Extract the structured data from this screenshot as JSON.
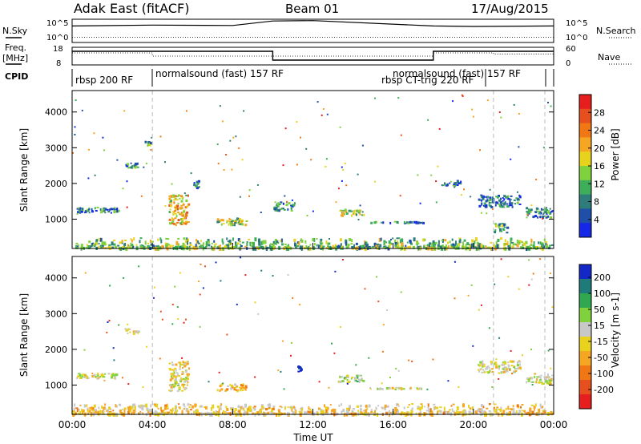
{
  "header": {
    "title": "Adak East (fitACF)",
    "beam": "Beam 01",
    "date": "17/Aug/2015"
  },
  "panels": {
    "nsky_label": "N.Sky",
    "nsky_top": "10^5",
    "nsky_bottom": "10^0",
    "nsearch_label": "N.Search",
    "nsearch_top": "10^5",
    "nsearch_bottom": "10^0",
    "freq_label_1": "Freq.",
    "freq_label_2": "[MHz]",
    "freq_top": "18",
    "freq_bottom": "8",
    "nave_label": "Nave",
    "nave_top": "60",
    "nave_bottom": "0",
    "cpid_label": "CPID"
  },
  "cpid_segments": [
    {
      "label": "rbsp 200 RF"
    },
    {
      "label": "normalsound (fast) 157 RF"
    },
    {
      "label": "rbsp CT-trig 220 RF"
    },
    {
      "label": "normalsound (fast) 157 RF"
    }
  ],
  "axes": {
    "ylabel": "Slant Range [km]",
    "xlabel": "Time UT",
    "yticks": [
      "1000",
      "2000",
      "3000",
      "4000"
    ],
    "xticks": [
      "00:00",
      "04:00",
      "08:00",
      "12:00",
      "16:00",
      "20:00",
      "00:00"
    ]
  },
  "colorbars": {
    "power": {
      "label": "Power [dB]",
      "ticks": [
        "4",
        "8",
        "12",
        "16",
        "20",
        "24",
        "28"
      ],
      "colors": [
        "#1428e6",
        "#1f4fa8",
        "#2f7d7a",
        "#3fae5a",
        "#7fd23c",
        "#e8d21e",
        "#f5a623",
        "#f07814",
        "#e6501e",
        "#e61e1e"
      ]
    },
    "velocity": {
      "label": "Velocity [m s-1]",
      "ticks": [
        "200",
        "100",
        "50",
        "15",
        "-15",
        "-50",
        "-100",
        "-200"
      ],
      "colors": [
        "#1428c8",
        "#1f7a7a",
        "#2fa84f",
        "#7fd23c",
        "#c8c8c8",
        "#e8d21e",
        "#f5a623",
        "#f07814",
        "#e6501e",
        "#e61e1e"
      ]
    }
  },
  "chart_data": [
    {
      "type": "line",
      "title": "",
      "series": [
        {
          "name": "N.Sky",
          "x": [
            0,
            4,
            8,
            10,
            12,
            18,
            20,
            24
          ],
          "y_log10": [
            3.5,
            3.7,
            3.6,
            4.6,
            4.7,
            3.5,
            3.4,
            3.5
          ]
        },
        {
          "name": "N.Search",
          "x": [
            0,
            4,
            8,
            10,
            12,
            18,
            20,
            24
          ],
          "y_log10": [
            1.0,
            1.0,
            1.0,
            1.0,
            1.0,
            1.0,
            1.0,
            1.0
          ]
        }
      ],
      "x_range_hours": [
        0,
        24
      ],
      "ylim_log10": [
        0,
        5
      ]
    },
    {
      "type": "line",
      "title": "",
      "series": [
        {
          "name": "Freq. [MHz]",
          "x": [
            0,
            10,
            10,
            18,
            18,
            24
          ],
          "y": [
            16.0,
            16.0,
            10.5,
            10.5,
            16.0,
            16.0
          ]
        },
        {
          "name": "Nave",
          "x": [
            0,
            4,
            4,
            18,
            18,
            21,
            21,
            24
          ],
          "y": [
            42,
            42,
            30,
            30,
            42,
            42,
            38,
            38
          ]
        }
      ],
      "freq_ylim": [
        8,
        18
      ],
      "nave_ylim": [
        0,
        60
      ]
    },
    {
      "type": "heatmap",
      "title": "",
      "xlabel": "Time UT",
      "ylabel": "Slant Range [km]",
      "colorbar_label": "Power [dB]",
      "x_range_hours": [
        0,
        24
      ],
      "ylim_km": [
        180,
        4600
      ],
      "clim_db": [
        0,
        30
      ],
      "regions": [
        {
          "t": [
            0.2,
            2.4
          ],
          "r": [
            1150,
            1350
          ],
          "value": 7
        },
        {
          "t": [
            2.6,
            3.4
          ],
          "r": [
            2400,
            2600
          ],
          "value": 8
        },
        {
          "t": [
            3.6,
            4.0
          ],
          "r": [
            3000,
            3200
          ],
          "value": 10
        },
        {
          "t": [
            4.8,
            5.9
          ],
          "r": [
            800,
            1700
          ],
          "value": 18
        },
        {
          "t": [
            6.0,
            6.4
          ],
          "r": [
            1800,
            2100
          ],
          "value": 8
        },
        {
          "t": [
            7.2,
            8.8
          ],
          "r": [
            800,
            1050
          ],
          "value": 14
        },
        {
          "t": [
            10.0,
            11.2
          ],
          "r": [
            1200,
            1500
          ],
          "value": 8
        },
        {
          "t": [
            13.2,
            14.6
          ],
          "r": [
            1050,
            1300
          ],
          "value": 14
        },
        {
          "t": [
            14.8,
            17.6
          ],
          "r": [
            850,
            950
          ],
          "value": 7
        },
        {
          "t": [
            18.4,
            19.5
          ],
          "r": [
            1900,
            2100
          ],
          "value": 6
        },
        {
          "t": [
            20.2,
            22.4
          ],
          "r": [
            1300,
            1700
          ],
          "value": 6
        },
        {
          "t": [
            22.6,
            24.0
          ],
          "r": [
            1000,
            1350
          ],
          "value": 7
        },
        {
          "t": [
            21.0,
            21.8
          ],
          "r": [
            600,
            900
          ],
          "value": 10
        },
        {
          "t": [
            0.0,
            24.0
          ],
          "r": [
            180,
            450
          ],
          "value": 12
        }
      ]
    },
    {
      "type": "heatmap",
      "title": "",
      "xlabel": "Time UT",
      "ylabel": "Slant Range [km]",
      "colorbar_label": "Velocity [m s-1]",
      "x_range_hours": [
        0,
        24
      ],
      "ylim_km": [
        180,
        4600
      ],
      "clim_ms": [
        -250,
        250
      ],
      "regions": [
        {
          "t": [
            0.2,
            2.4
          ],
          "r": [
            1150,
            1350
          ],
          "value": 0
        },
        {
          "t": [
            2.6,
            3.4
          ],
          "r": [
            2400,
            2600
          ],
          "value": 0
        },
        {
          "t": [
            4.8,
            5.9
          ],
          "r": [
            800,
            1700
          ],
          "value": -10
        },
        {
          "t": [
            7.2,
            8.8
          ],
          "r": [
            800,
            1050
          ],
          "value": -60
        },
        {
          "t": [
            11.2,
            11.5
          ],
          "r": [
            1350,
            1550
          ],
          "value": 220
        },
        {
          "t": [
            13.2,
            14.6
          ],
          "r": [
            1050,
            1300
          ],
          "value": 40
        },
        {
          "t": [
            14.8,
            17.6
          ],
          "r": [
            850,
            950
          ],
          "value": 5
        },
        {
          "t": [
            20.2,
            22.4
          ],
          "r": [
            1300,
            1700
          ],
          "value": 0
        },
        {
          "t": [
            22.6,
            24.0
          ],
          "r": [
            1000,
            1350
          ],
          "value": 0
        },
        {
          "t": [
            0.0,
            24.0
          ],
          "r": [
            180,
            450
          ],
          "value": -30
        }
      ]
    }
  ]
}
